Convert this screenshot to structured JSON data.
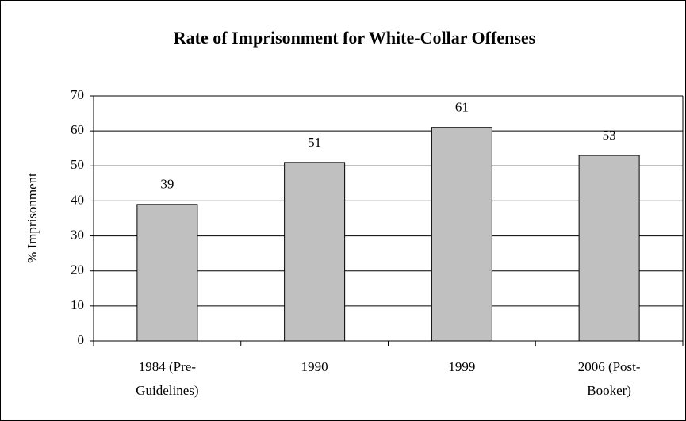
{
  "chart_data": {
    "type": "bar",
    "title": "Rate of Imprisonment for White-Collar Offenses",
    "y_label": "% Imprisonment",
    "categories": [
      "1984 (Pre-\nGuidelines)",
      "1990",
      "1999",
      "2006 (Post-\nBooker)"
    ],
    "values": [
      39,
      51,
      61,
      53
    ],
    "color": "#c0c0c0",
    "ylim": [
      0,
      70
    ],
    "yticks": [
      0,
      10,
      20,
      30,
      40,
      50,
      60,
      70
    ],
    "grid": true,
    "data_labels": true
  }
}
